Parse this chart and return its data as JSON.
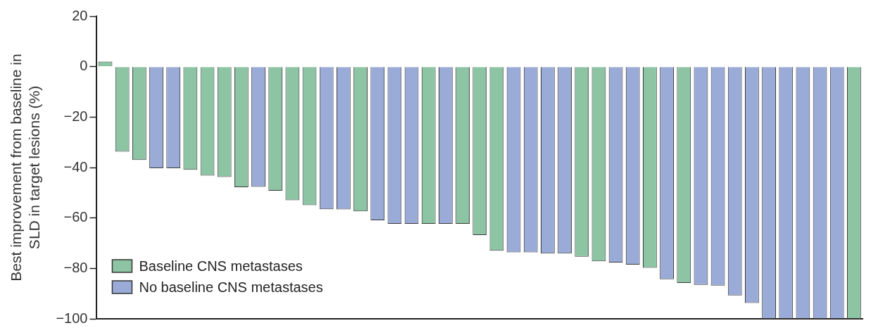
{
  "chart_data": {
    "type": "bar",
    "ylabel": "Best improvement from baseline in\nSLD in target lesions (%)",
    "categories": [
      null,
      null,
      null,
      null,
      null,
      null,
      null,
      null,
      null,
      null,
      null,
      null,
      null,
      null,
      null,
      null,
      null,
      null,
      null,
      null,
      null,
      null,
      null,
      null,
      null,
      null,
      null,
      null,
      null,
      null,
      null,
      null,
      null,
      null,
      null,
      null,
      null,
      null,
      null,
      null,
      null,
      null,
      null,
      null,
      null
    ],
    "series": [
      {
        "name": "Baseline CNS metastases",
        "color": "#8cc4a4",
        "values": [
          2,
          -33.7,
          -37.0,
          null,
          null,
          -40.9,
          -43.2,
          -43.8,
          -47.8,
          null,
          -49.2,
          -53.0,
          -54.9,
          null,
          null,
          -57.4,
          null,
          null,
          null,
          -62.3,
          null,
          -62.3,
          -66.8,
          -73.0,
          null,
          null,
          null,
          null,
          -75.4,
          -77.2,
          null,
          null,
          -79.8,
          null,
          -85.8,
          null,
          null,
          null,
          null,
          null,
          null,
          null,
          null,
          null,
          -100
        ]
      },
      {
        "name": "No baseline CNS metastases",
        "color": "#9babd8",
        "values": [
          null,
          null,
          null,
          -40.3,
          -40.3,
          null,
          null,
          null,
          null,
          -47.7,
          null,
          null,
          null,
          -56.5,
          -56.6,
          null,
          -60.9,
          -62.3,
          -62.3,
          null,
          -62.3,
          null,
          null,
          null,
          -73.6,
          -73.6,
          -74.1,
          -74.1,
          null,
          null,
          -77.7,
          -78.5,
          null,
          -84.3,
          null,
          -86.5,
          -86.8,
          -90.7,
          -93.7,
          -100,
          -100,
          -100,
          -100,
          -100,
          null
        ]
      }
    ],
    "ylim": [
      -100,
      20
    ],
    "yticks": [
      -100,
      -80,
      -60,
      -40,
      -20,
      0,
      20
    ],
    "grid": false,
    "legend": "bottom left",
    "tick_labels": "y"
  }
}
